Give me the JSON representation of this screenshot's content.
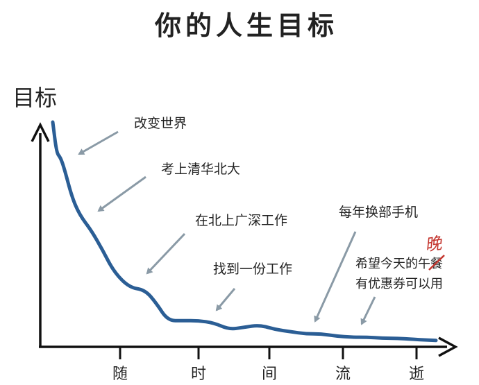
{
  "chart_data": {
    "type": "line",
    "title": "你的人生目标",
    "ylabel": "目标",
    "xlabel": "",
    "x_ticks": [
      "随",
      "时",
      "间",
      "流",
      "逝"
    ],
    "grid": false,
    "legend": "none",
    "series": [
      {
        "color": "#2b5e95",
        "x": [
          0,
          0.05,
          0.1,
          0.15,
          0.25,
          0.35,
          0.5,
          0.65,
          0.8,
          1.0,
          1.2,
          1.35,
          1.5,
          1.7,
          1.9,
          2.1,
          2.3,
          2.5,
          2.7,
          2.9,
          3.1,
          3.3,
          3.5,
          3.7,
          3.9,
          4.1,
          4.3,
          4.5,
          4.7,
          5.0
        ],
        "values": [
          100,
          86,
          84,
          79,
          66,
          58,
          51,
          42,
          32,
          25,
          24,
          18,
          10,
          10,
          10,
          9,
          6,
          7,
          8,
          6,
          5,
          4,
          4,
          3,
          2.5,
          2.5,
          2,
          2,
          1.5,
          1
        ]
      }
    ],
    "annotations": [
      {
        "text": "改变世界",
        "x": 0.3,
        "y": 90
      },
      {
        "text": "考上清华北大",
        "x": 0.55,
        "y": 66
      },
      {
        "text": "在北上广深工作",
        "x": 1.2,
        "y": 37
      },
      {
        "text": "找到一份工作",
        "x": 2.0,
        "y": 19
      },
      {
        "text": "每年换部手机",
        "x": 3.5,
        "y": 32
      },
      {
        "text": "希望今天的午餐",
        "x": 3.9,
        "y": 18
      },
      {
        "text": "有优惠券可以用",
        "x": 3.9,
        "y": 13
      }
    ],
    "correction": {
      "struck": "午",
      "inserted": "晚"
    }
  }
}
